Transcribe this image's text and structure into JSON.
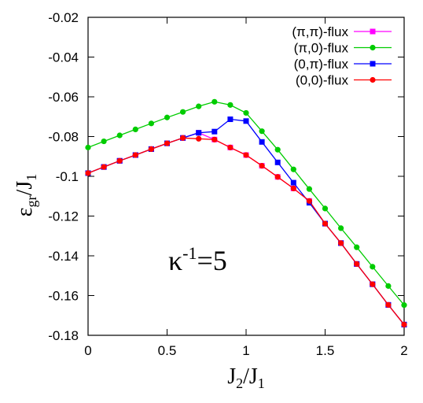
{
  "chart_data": {
    "type": "line",
    "xlim": [
      0,
      2
    ],
    "ylim": [
      -0.18,
      -0.02
    ],
    "xticks": [
      "0",
      "0.5",
      "1",
      "1.5",
      "2"
    ],
    "yticks": [
      "-0.02",
      "-0.04",
      "-0.06",
      "-0.08",
      "-0.1",
      "-0.12",
      "-0.14",
      "-0.16",
      "-0.18"
    ],
    "xlabel": {
      "main": "J",
      "sub": "2",
      "rest": "/J",
      "sub2": "1"
    },
    "ylabel": {
      "main": "ε",
      "sub": "gr",
      "rest": "/J",
      "sub2": "1"
    },
    "annotation": {
      "base": "κ",
      "sup": "-1",
      "rest": "=5"
    },
    "legend_position": "top-right",
    "grid": false,
    "x": [
      0,
      0.1,
      0.2,
      0.3,
      0.4,
      0.5,
      0.6,
      0.7,
      0.8,
      0.9,
      1.0,
      1.1,
      1.2,
      1.3,
      1.4,
      1.5,
      1.6,
      1.7,
      1.8,
      1.9,
      2.0
    ],
    "series": [
      {
        "name": "(π,π)-flux",
        "color": "#ff00ff",
        "marker": "square",
        "values": [
          -0.0984,
          -0.0953,
          -0.0922,
          -0.0893,
          -0.0863,
          -0.0834,
          -0.0807,
          -0.0781,
          -0.0815,
          -0.0855,
          -0.0893,
          -0.0947,
          -0.1003,
          -0.1061,
          -0.1124,
          -0.1238,
          -0.1336,
          -0.1441,
          -0.1543,
          -0.1647,
          -0.1746
        ]
      },
      {
        "name": "(π,0)-flux",
        "color": "#00cc00",
        "marker": "circle",
        "values": [
          -0.0855,
          -0.0824,
          -0.0794,
          -0.0764,
          -0.0734,
          -0.0704,
          -0.0676,
          -0.0648,
          -0.0625,
          -0.0641,
          -0.0681,
          -0.0773,
          -0.0866,
          -0.0965,
          -0.1064,
          -0.1162,
          -0.1261,
          -0.1357,
          -0.1455,
          -0.1552,
          -0.1648
        ]
      },
      {
        "name": "(0,π)-flux",
        "color": "#0000ff",
        "marker": "square",
        "values": [
          -0.0984,
          -0.0953,
          -0.0922,
          -0.0893,
          -0.0863,
          -0.0834,
          -0.0807,
          -0.0781,
          -0.0775,
          -0.0713,
          -0.0722,
          -0.0827,
          -0.093,
          -0.1032,
          -0.1133,
          -0.1238,
          -0.1336,
          -0.1441,
          -0.1543,
          -0.1647,
          -0.1746
        ]
      },
      {
        "name": "(0,0)-flux",
        "color": "#ff0000",
        "marker": "circle",
        "values": [
          -0.0984,
          -0.0953,
          -0.0922,
          -0.0893,
          -0.0863,
          -0.0834,
          -0.0807,
          -0.0811,
          -0.0815,
          -0.0855,
          -0.0893,
          -0.0947,
          -0.1003,
          -0.1061,
          -0.1124,
          -0.1238,
          -0.1336,
          -0.1441,
          -0.1543,
          -0.1647,
          -0.1746
        ]
      }
    ]
  }
}
